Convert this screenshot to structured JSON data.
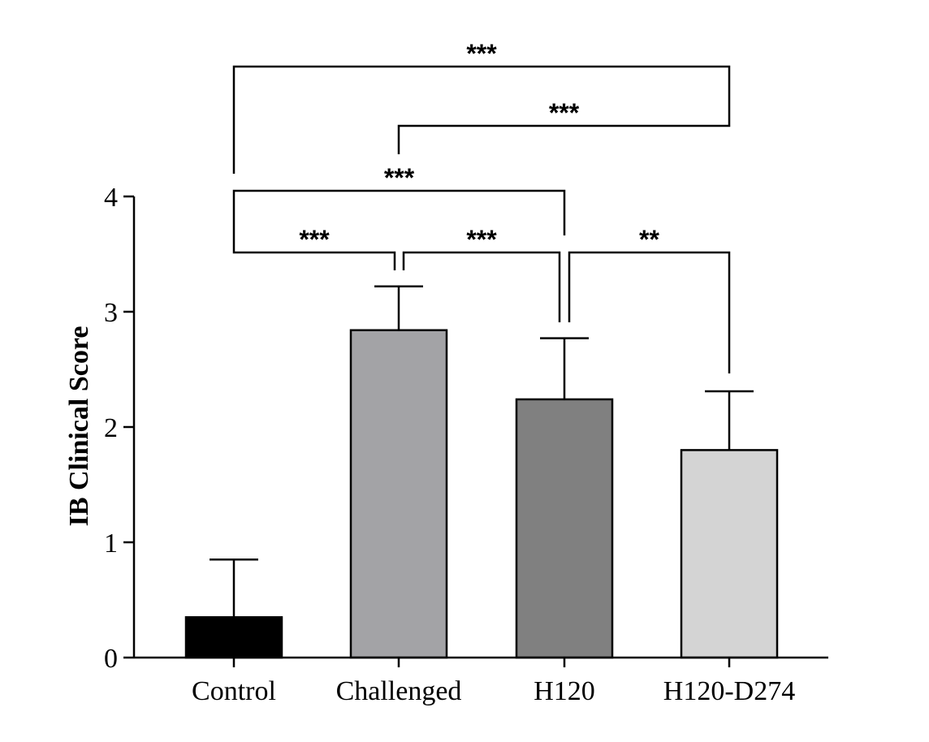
{
  "chart_data": {
    "type": "bar",
    "title": "",
    "xlabel": "",
    "ylabel": "IB Clinical Score",
    "ylim": [
      0,
      4
    ],
    "yticks": [
      0,
      1,
      2,
      3,
      4
    ],
    "categories": [
      "Control",
      "Challenged",
      "H120",
      "H120-D274"
    ],
    "values": [
      0.35,
      2.84,
      2.24,
      1.8
    ],
    "error": [
      0.5,
      0.38,
      0.53,
      0.51
    ],
    "colors": [
      "#000000",
      "#a3a3a6",
      "#808080",
      "#d4d4d4"
    ],
    "grid": false,
    "comparisons": [
      {
        "from": "Control",
        "to": "H120-D274",
        "label": "***"
      },
      {
        "from": "Challenged",
        "to": "H120-D274",
        "label": "***"
      },
      {
        "from": "Control",
        "to": "H120",
        "label": "***"
      },
      {
        "from": "Control",
        "to": "Challenged",
        "label": "***"
      },
      {
        "from": "Challenged",
        "to": "H120",
        "label": "***"
      },
      {
        "from": "H120",
        "to": "H120-D274",
        "label": "**"
      }
    ]
  }
}
